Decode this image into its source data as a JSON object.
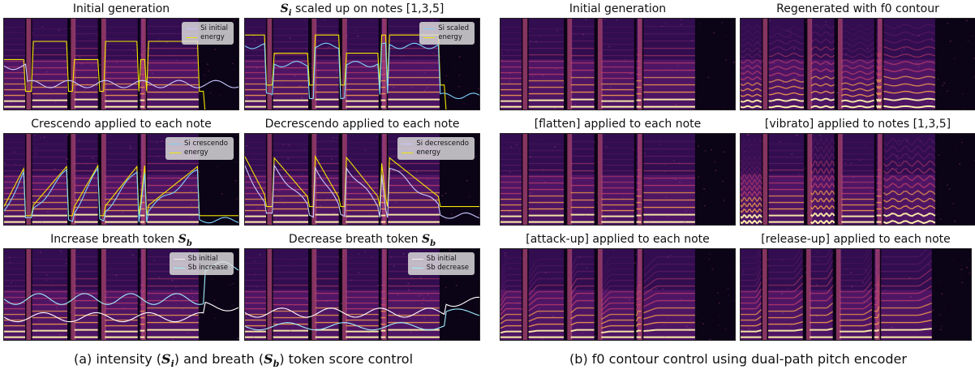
{
  "left": {
    "caption": {
      "pre": "(a) intensity (",
      "sym1": "S",
      "sub1": "i",
      "mid": ") and breath (",
      "sym2": "S",
      "sub2": "b",
      "post": ") token  score control"
    },
    "panels": [
      {
        "title_pre": "Initial generation",
        "title_sym": "",
        "title_sub": "",
        "title_post": "",
        "legend": [
          {
            "label": "Si  initial",
            "color": "#c8c8ff"
          },
          {
            "label": "energy",
            "color": "#f2e600"
          }
        ],
        "variant": "A",
        "lines": "intensity-initial"
      },
      {
        "title_pre": "",
        "title_sym": "S",
        "title_sub": "i",
        "title_post": " scaled up on notes [1,3,5]",
        "legend": [
          {
            "label": "Si  scaled",
            "color": "#7fd3ff"
          },
          {
            "label": "energy",
            "color": "#f2e600"
          }
        ],
        "variant": "A",
        "lines": "intensity-scaled"
      },
      {
        "title_pre": "Crescendo applied to each note",
        "title_sym": "",
        "title_sub": "",
        "title_post": "",
        "legend": [
          {
            "label": "Si  crescendo",
            "color": "#7fd3ff"
          },
          {
            "label": "energy",
            "color": "#f2e600"
          }
        ],
        "variant": "A",
        "lines": "intensity-crescendo"
      },
      {
        "title_pre": "Decrescendo applied to each note",
        "title_sym": "",
        "title_sub": "",
        "title_post": "",
        "legend": [
          {
            "label": "Si  decrescendo",
            "color": "#c8c8ff"
          },
          {
            "label": "energy",
            "color": "#f2e600"
          }
        ],
        "variant": "A",
        "lines": "intensity-decrescendo"
      },
      {
        "title_pre": "Increase breath token ",
        "title_sym": "S",
        "title_sub": "b",
        "title_post": "",
        "legend": [
          {
            "label": "Sb initial",
            "color": "#ffffff"
          },
          {
            "label": "Sb increase",
            "color": "#9ff0ff"
          }
        ],
        "variant": "A",
        "lines": "breath-increase"
      },
      {
        "title_pre": "Decrease breath token ",
        "title_sym": "S",
        "title_sub": "b",
        "title_post": "",
        "legend": [
          {
            "label": "Sb initial",
            "color": "#ffffff"
          },
          {
            "label": "Sb  decrease",
            "color": "#9ff0ff"
          }
        ],
        "variant": "A",
        "lines": "breath-decrease"
      }
    ]
  },
  "right": {
    "caption": {
      "text": "(b) f0 contour control using dual-path pitch encoder"
    },
    "panels": [
      {
        "title": "Initial generation",
        "variant": "B",
        "pitch": "flat"
      },
      {
        "title": "Regenerated with f0 contour",
        "variant": "B",
        "pitch": "wavy"
      },
      {
        "title": "[flatten] applied to each note",
        "variant": "B",
        "pitch": "flat"
      },
      {
        "title": "[vibrato] applied to notes [1,3,5]",
        "variant": "B",
        "pitch": "vibrato"
      },
      {
        "title": "[attack-up] applied to each note",
        "variant": "B",
        "pitch": "attack"
      },
      {
        "title": "[release-up] applied to each note",
        "variant": "B",
        "pitch": "release"
      }
    ]
  }
}
